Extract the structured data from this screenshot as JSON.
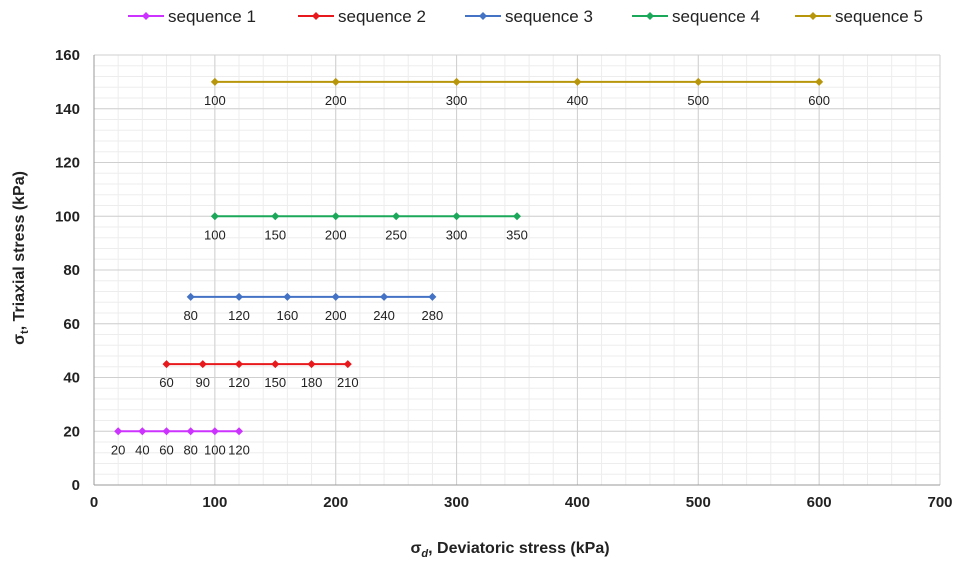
{
  "chart_data": {
    "type": "line",
    "xlabel_symbol": "σ",
    "xlabel_sub": "d",
    "xlabel_rest": ", Deviatoric stress (kPa)",
    "ylabel_symbol": "σ",
    "ylabel_sub": "t",
    "ylabel_rest": ", Triaxial stress (kPa)",
    "xlim": [
      0,
      700
    ],
    "ylim": [
      0,
      160
    ],
    "x_ticks": [
      0,
      100,
      200,
      300,
      400,
      500,
      600,
      700
    ],
    "y_ticks": [
      0,
      20,
      40,
      60,
      80,
      100,
      120,
      140,
      160
    ],
    "x_minor_step": 20,
    "y_minor_step": 4,
    "grid": true,
    "legend_position": "top",
    "series": [
      {
        "name": "sequence 1",
        "color": "#cc33ff",
        "y": 20,
        "x": [
          20,
          40,
          60,
          80,
          100,
          120
        ],
        "labels": [
          "20",
          "40",
          "60",
          "80",
          "100",
          "120"
        ]
      },
      {
        "name": "sequence 2",
        "color": "#e8191c",
        "y": 45,
        "x": [
          60,
          90,
          120,
          150,
          180,
          210
        ],
        "labels": [
          "60",
          "90",
          "120",
          "150",
          "180",
          "210"
        ]
      },
      {
        "name": "sequence 3",
        "color": "#4472c4",
        "y": 70,
        "x": [
          80,
          120,
          160,
          200,
          240,
          280
        ],
        "labels": [
          "80",
          "120",
          "160",
          "200",
          "240",
          "280"
        ]
      },
      {
        "name": "sequence 4",
        "color": "#1ca85a",
        "y": 100,
        "x": [
          100,
          150,
          200,
          250,
          300,
          350
        ],
        "labels": [
          "100",
          "150",
          "200",
          "250",
          "300",
          "350"
        ]
      },
      {
        "name": "sequence 5",
        "color": "#b8960c",
        "y": 150,
        "x": [
          100,
          200,
          300,
          400,
          500,
          600
        ],
        "labels": [
          "100",
          "200",
          "300",
          "400",
          "500",
          "600"
        ]
      }
    ]
  }
}
